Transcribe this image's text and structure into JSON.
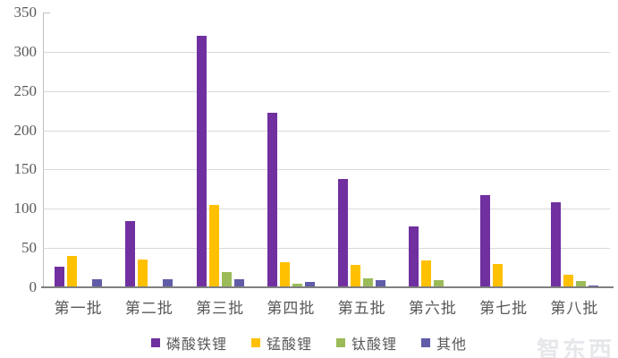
{
  "chart_data": {
    "type": "bar",
    "title": "",
    "categories": [
      "第一批",
      "第二批",
      "第三批",
      "第四批",
      "第五批",
      "第六批",
      "第七批",
      "第八批"
    ],
    "series": [
      {
        "name": "磷酸铁锂",
        "color": "#7030A0",
        "values": [
          26,
          84,
          320,
          222,
          138,
          77,
          118,
          108
        ]
      },
      {
        "name": "锰酸锂",
        "color": "#FFC000",
        "values": [
          40,
          35,
          105,
          32,
          29,
          34,
          30,
          16
        ]
      },
      {
        "name": "钛酸锂",
        "color": "#9BBB59",
        "values": [
          0,
          0,
          19,
          5,
          11,
          9,
          0,
          8
        ]
      },
      {
        "name": "其他",
        "color": "#605CA8",
        "values": [
          10,
          10,
          10,
          7,
          9,
          0,
          1,
          2
        ]
      }
    ],
    "xlabel": "",
    "ylabel": "",
    "ylim": [
      0,
      350
    ],
    "ytick_step": 50,
    "yticks": [
      "0",
      "50",
      "100",
      "150",
      "200",
      "250",
      "300",
      "350"
    ],
    "grid": true,
    "legend_position": "bottom",
    "colors": {
      "gridline": "#d9d9d9",
      "axis": "#808080",
      "text": "#595959",
      "background": "#ffffff"
    }
  },
  "watermark": "智东西"
}
